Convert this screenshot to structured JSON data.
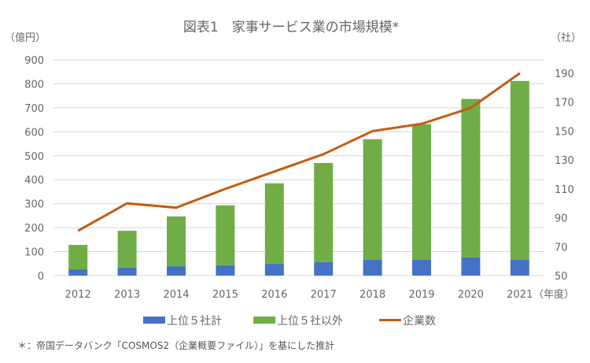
{
  "chart_data": {
    "type": "bar+line",
    "title": "図表1　家事サービス業の市場規模*",
    "ylabel_left": "（億円）",
    "ylabel_right": "（社）",
    "xlabel": "（年度）",
    "categories": [
      "2012",
      "2013",
      "2014",
      "2015",
      "2016",
      "2017",
      "2018",
      "2019",
      "2020",
      "2021"
    ],
    "ylim_left": [
      0,
      900
    ],
    "yticks_left": [
      0,
      100,
      200,
      300,
      400,
      500,
      600,
      700,
      800,
      900
    ],
    "ylim_right": [
      50,
      200
    ],
    "yticks_right": [
      50,
      70,
      90,
      110,
      130,
      150,
      170,
      190
    ],
    "grid": true,
    "legend_position": "bottom",
    "series": [
      {
        "name": "上位５社計",
        "type": "stacked-bar",
        "axis": "left",
        "color": "#4472c4",
        "values": [
          26,
          33,
          39,
          43,
          49,
          56,
          66,
          66,
          76,
          66
        ]
      },
      {
        "name": "上位５社以外",
        "type": "stacked-bar",
        "axis": "left",
        "color": "#70ad47",
        "values": [
          102,
          154,
          208,
          250,
          336,
          414,
          503,
          566,
          661,
          746
        ]
      },
      {
        "name": "企業数",
        "type": "line",
        "axis": "right",
        "color": "#c55a11",
        "values": [
          81,
          100,
          97,
          110,
          122,
          134,
          150,
          155,
          166,
          190
        ]
      }
    ]
  },
  "footnote": "＊：帝国データバンク「COSMOS2（企業概要ファイル）」を基にした推計"
}
